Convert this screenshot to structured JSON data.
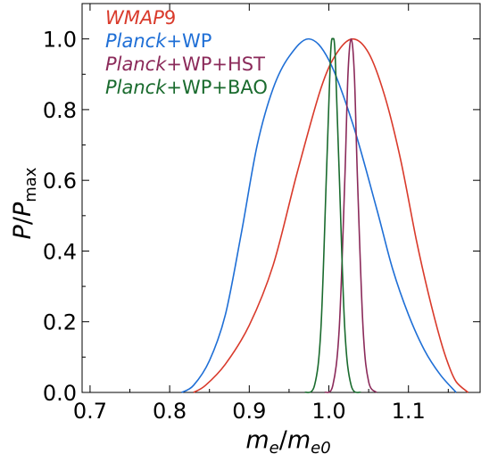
{
  "chart_data": {
    "type": "line",
    "xlabel": "m_e/m_e0",
    "ylabel": "P/P_max",
    "xlim": [
      0.69,
      1.19
    ],
    "ylim": [
      0.0,
      1.1
    ],
    "x_ticks": [
      "0.7",
      "0.8",
      "0.9",
      "1.0",
      "1.1"
    ],
    "y_ticks": [
      "0.0",
      "0.2",
      "0.4",
      "0.6",
      "0.8",
      "1.0"
    ],
    "grid": false,
    "legend_placement": "top-left",
    "series": [
      {
        "name": "WMAP9",
        "color": "#d93a2b",
        "points": [
          [
            0.83,
            0.0
          ],
          [
            0.845,
            0.02
          ],
          [
            0.87,
            0.08
          ],
          [
            0.9,
            0.19
          ],
          [
            0.93,
            0.36
          ],
          [
            0.96,
            0.62
          ],
          [
            0.99,
            0.86
          ],
          [
            1.01,
            0.96
          ],
          [
            1.03,
            1.0
          ],
          [
            1.05,
            0.96
          ],
          [
            1.07,
            0.84
          ],
          [
            1.09,
            0.66
          ],
          [
            1.11,
            0.43
          ],
          [
            1.125,
            0.28
          ],
          [
            1.14,
            0.15
          ],
          [
            1.15,
            0.08
          ],
          [
            1.16,
            0.03
          ],
          [
            1.175,
            0.0
          ]
        ]
      },
      {
        "name": "Planck+WP",
        "color": "#1f6fd6",
        "points": [
          [
            0.815,
            0.0
          ],
          [
            0.83,
            0.02
          ],
          [
            0.85,
            0.09
          ],
          [
            0.87,
            0.22
          ],
          [
            0.89,
            0.45
          ],
          [
            0.91,
            0.7
          ],
          [
            0.93,
            0.86
          ],
          [
            0.95,
            0.95
          ],
          [
            0.975,
            1.0
          ],
          [
            1.0,
            0.94
          ],
          [
            1.03,
            0.76
          ],
          [
            1.06,
            0.52
          ],
          [
            1.08,
            0.35
          ],
          [
            1.1,
            0.22
          ],
          [
            1.12,
            0.12
          ],
          [
            1.14,
            0.05
          ],
          [
            1.16,
            0.0
          ]
        ]
      },
      {
        "name": "Planck+WP+HST",
        "color": "#8b2a5a",
        "points": [
          [
            0.995,
            0.0
          ],
          [
            1.005,
            0.02
          ],
          [
            1.013,
            0.18
          ],
          [
            1.02,
            0.6
          ],
          [
            1.024,
            0.9
          ],
          [
            1.028,
            1.0
          ],
          [
            1.032,
            0.9
          ],
          [
            1.036,
            0.6
          ],
          [
            1.043,
            0.18
          ],
          [
            1.05,
            0.03
          ],
          [
            1.06,
            0.0
          ]
        ]
      },
      {
        "name": "Planck+WP+BAO",
        "color": "#1a6b2e",
        "points": [
          [
            0.97,
            0.0
          ],
          [
            0.982,
            0.02
          ],
          [
            0.99,
            0.18
          ],
          [
            0.997,
            0.62
          ],
          [
            1.002,
            0.95
          ],
          [
            1.005,
            1.0
          ],
          [
            1.008,
            0.95
          ],
          [
            1.013,
            0.62
          ],
          [
            1.02,
            0.18
          ],
          [
            1.028,
            0.02
          ],
          [
            1.04,
            0.0
          ]
        ]
      }
    ]
  },
  "legend": {
    "items": [
      {
        "italic": "WMAP",
        "rest": "9",
        "color": "#d93a2b"
      },
      {
        "italic": "Planck",
        "rest": "+WP",
        "color": "#1f6fd6"
      },
      {
        "italic": "Planck",
        "rest": "+WP+HST",
        "color": "#8b2a5a"
      },
      {
        "italic": "Planck",
        "rest": "+WP+BAO",
        "color": "#1a6b2e"
      }
    ]
  },
  "axis_text": {
    "x_main": "m",
    "x_sub": "e",
    "x_slash": "/",
    "x_main2": "m",
    "x_sub2": "e0",
    "y_main": "P",
    "y_slash": "/",
    "y_main2": "P",
    "y_sub": "max"
  }
}
